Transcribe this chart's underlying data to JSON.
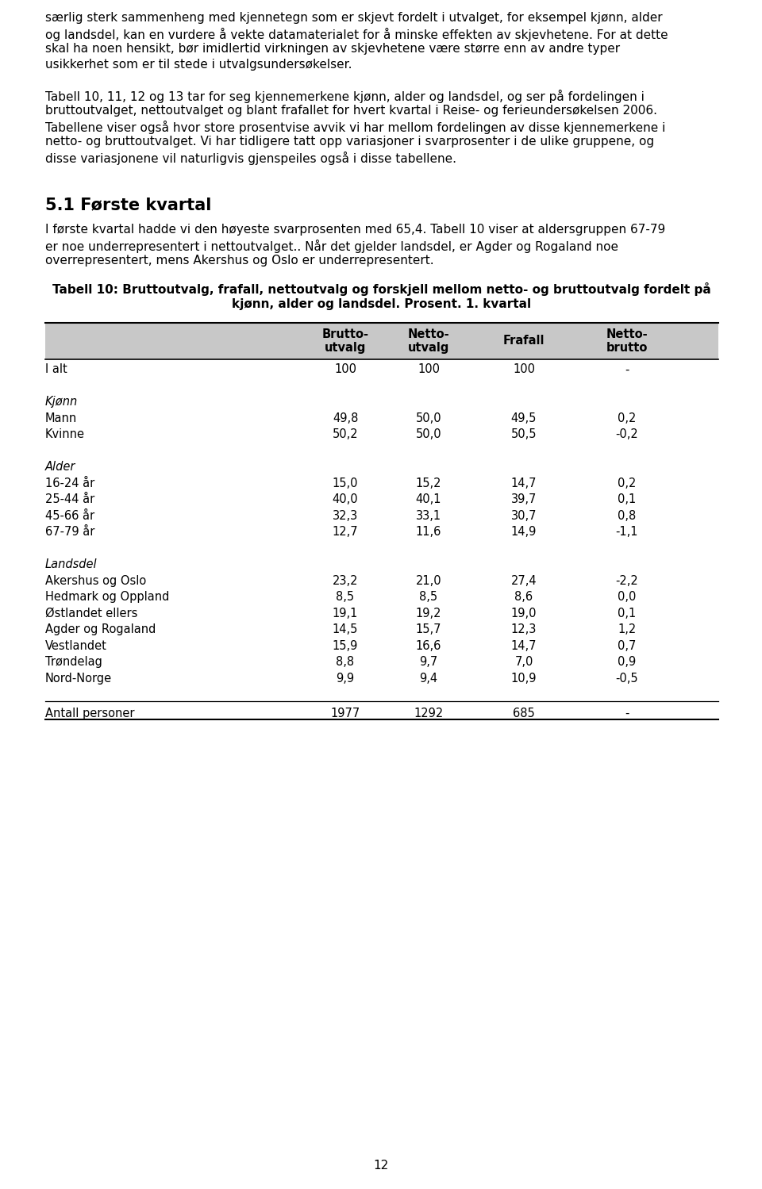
{
  "page_number": "12",
  "body_text": [
    "særlig sterk sammenheng med kjennetegn som er skjevt fordelt i utvalget, for eksempel kjønn, alder",
    "og landsdel, kan en vurdere å vekte datamaterialet for å minske effekten av skjevhetene. For at dette",
    "skal ha noen hensikt, bør imidlertid virkningen av skjevhetene være større enn av andre typer",
    "usikkerhet som er til stede i utvalgsundersøkelser."
  ],
  "paragraph2": [
    "Tabell 10, 11, 12 og 13 tar for seg kjennemerkene kjønn, alder og landsdel, og ser på fordelingen i",
    "bruttoutvalget, nettoutvalget og blant frafallet for hvert kvartal i Reise- og ferieundersøkelsen 2006.",
    "Tabellene viser også hvor store prosentvise avvik vi har mellom fordelingen av disse kjennemerkene i",
    "netto- og bruttoutvalget. Vi har tidligere tatt opp variasjoner i svarprosenter i de ulike gruppene, og",
    "disse variasjonene vil naturligvis gjenspeiles også i disse tabellene."
  ],
  "section_title": "5.1 Første kvartal",
  "section_text": [
    "I første kvartal hadde vi den høyeste svarprosenten med 65,4. Tabell 10 viser at aldersgruppen 67-79",
    "er noe underrepresentert i nettoutvalget.. Når det gjelder landsdel, er Agder og Rogaland noe",
    "overrepresentert, mens Akershus og Oslo er underrepresentert."
  ],
  "table_title_line1": "Tabell 10: Bruttoutvalg, frafall, nettoutvalg og forskjell mellom netto- og bruttoutvalg fordelt på",
  "table_title_line2": "kjønn, alder og landsdel. Prosent. 1. kvartal",
  "col_header_bg": "#c8c8c8",
  "rows": [
    {
      "label": "I alt",
      "values": [
        "100",
        "100",
        "100",
        "-"
      ],
      "italic": false
    },
    {
      "label": "",
      "values": [
        "",
        "",
        "",
        ""
      ],
      "italic": false
    },
    {
      "label": "Kjønn",
      "values": [
        "",
        "",
        "",
        ""
      ],
      "italic": true
    },
    {
      "label": "Mann",
      "values": [
        "49,8",
        "50,0",
        "49,5",
        "0,2"
      ],
      "italic": false
    },
    {
      "label": "Kvinne",
      "values": [
        "50,2",
        "50,0",
        "50,5",
        "-0,2"
      ],
      "italic": false
    },
    {
      "label": "",
      "values": [
        "",
        "",
        "",
        ""
      ],
      "italic": false
    },
    {
      "label": "Alder",
      "values": [
        "",
        "",
        "",
        ""
      ],
      "italic": true
    },
    {
      "label": "16-24 år",
      "values": [
        "15,0",
        "15,2",
        "14,7",
        "0,2"
      ],
      "italic": false
    },
    {
      "label": "25-44 år",
      "values": [
        "40,0",
        "40,1",
        "39,7",
        "0,1"
      ],
      "italic": false
    },
    {
      "label": "45-66 år",
      "values": [
        "32,3",
        "33,1",
        "30,7",
        "0,8"
      ],
      "italic": false
    },
    {
      "label": "67-79 år",
      "values": [
        "12,7",
        "11,6",
        "14,9",
        "-1,1"
      ],
      "italic": false
    },
    {
      "label": "",
      "values": [
        "",
        "",
        "",
        ""
      ],
      "italic": false
    },
    {
      "label": "Landsdel",
      "values": [
        "",
        "",
        "",
        ""
      ],
      "italic": true
    },
    {
      "label": "Akershus og Oslo",
      "values": [
        "23,2",
        "21,0",
        "27,4",
        "-2,2"
      ],
      "italic": false
    },
    {
      "label": "Hedmark og Oppland",
      "values": [
        "8,5",
        "8,5",
        "8,6",
        "0,0"
      ],
      "italic": false
    },
    {
      "label": "Østlandet ellers",
      "values": [
        "19,1",
        "19,2",
        "19,0",
        "0,1"
      ],
      "italic": false
    },
    {
      "label": "Agder og Rogaland",
      "values": [
        "14,5",
        "15,7",
        "12,3",
        "1,2"
      ],
      "italic": false
    },
    {
      "label": "Vestlandet",
      "values": [
        "15,9",
        "16,6",
        "14,7",
        "0,7"
      ],
      "italic": false
    },
    {
      "label": "Trøndelag",
      "values": [
        "8,8",
        "9,7",
        "7,0",
        "0,9"
      ],
      "italic": false
    },
    {
      "label": "Nord-Norge",
      "values": [
        "9,9",
        "9,4",
        "10,9",
        "-0,5"
      ],
      "italic": false
    },
    {
      "label": "",
      "values": [
        "",
        "",
        "",
        ""
      ],
      "italic": false
    },
    {
      "label": "Antall personer",
      "values": [
        "1977",
        "1292",
        "685",
        "-"
      ],
      "italic": false
    }
  ],
  "bg_color": "#ffffff",
  "fs_body": 11.0,
  "fs_section": 15.0,
  "fs_table": 10.5,
  "fs_table_title": 11.0
}
